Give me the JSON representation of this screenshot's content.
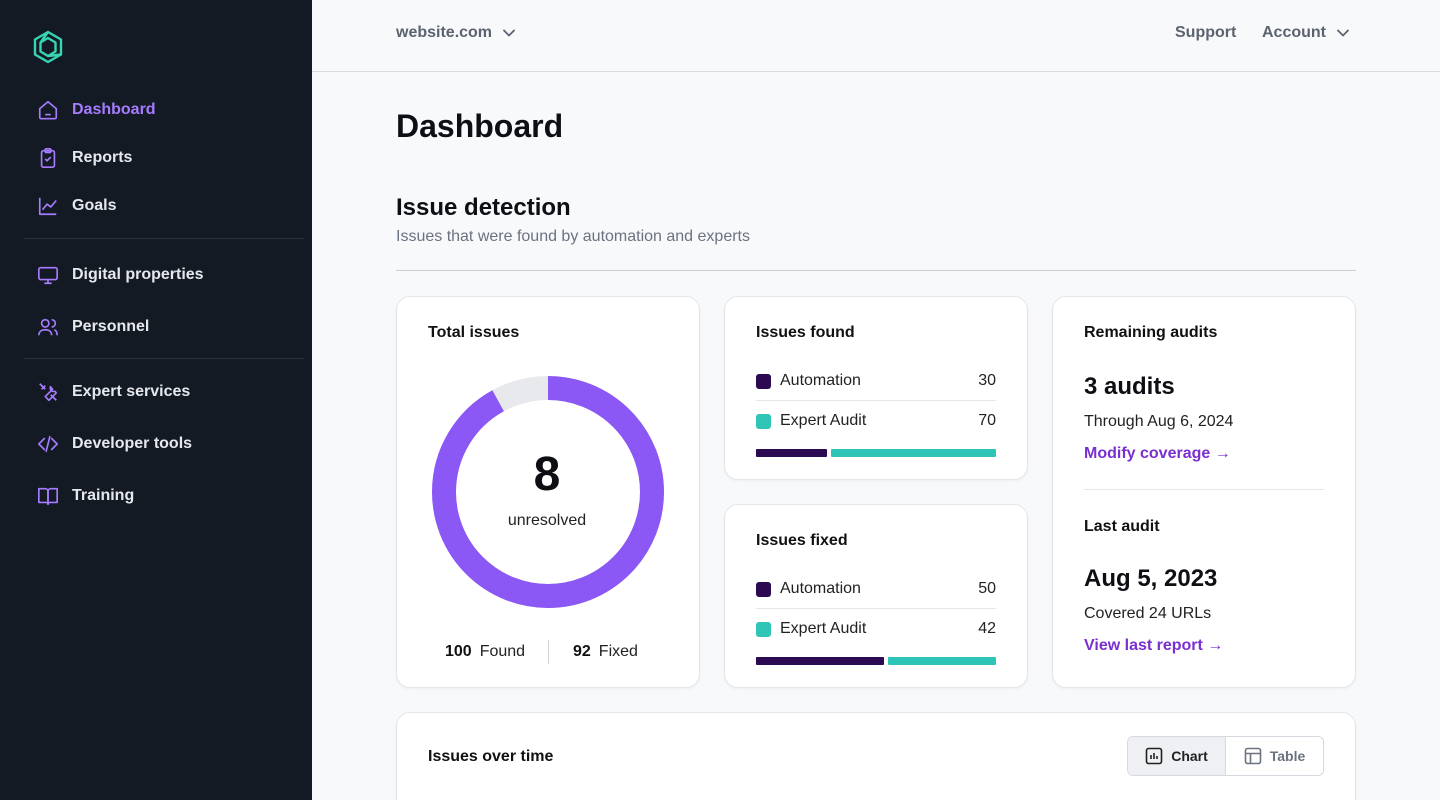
{
  "sidebar": {
    "items": [
      {
        "label": "Dashboard",
        "icon": "home-icon"
      },
      {
        "label": "Reports",
        "icon": "clipboard-check-icon"
      },
      {
        "label": "Goals",
        "icon": "trend-chart-icon"
      },
      {
        "label": "Digital properties",
        "icon": "monitor-icon"
      },
      {
        "label": "Personnel",
        "icon": "users-icon"
      },
      {
        "label": "Expert services",
        "icon": "tools-icon"
      },
      {
        "label": "Developer tools",
        "icon": "code-icon"
      },
      {
        "label": "Training",
        "icon": "book-icon"
      }
    ],
    "active_index": 0
  },
  "topbar": {
    "site": "website.com",
    "support": "Support",
    "account": "Account"
  },
  "main": {
    "title": "Dashboard",
    "section_title": "Issue detection",
    "section_subtitle": "Issues that were found by automation and experts"
  },
  "total_issues": {
    "title": "Total issues",
    "unresolved": "8",
    "unresolved_label": "unresolved",
    "found": "100",
    "found_label": "Found",
    "fixed": "92",
    "fixed_label": "Fixed",
    "fixed_fraction": 0.92
  },
  "issues_found": {
    "title": "Issues found",
    "rows": [
      {
        "label": "Automation",
        "value": "30"
      },
      {
        "label": "Expert Audit",
        "value": "70"
      }
    ],
    "fractions": [
      0.3,
      0.7
    ]
  },
  "issues_fixed": {
    "title": "Issues fixed",
    "rows": [
      {
        "label": "Automation",
        "value": "50"
      },
      {
        "label": "Expert Audit",
        "value": "42"
      }
    ],
    "fractions": [
      0.543,
      0.457
    ]
  },
  "audits": {
    "remaining_title": "Remaining audits",
    "remaining_value": "3 audits",
    "remaining_through": "Through Aug 6, 2024",
    "modify_link": "Modify coverage →",
    "last_title": "Last audit",
    "last_date": "Aug 5, 2023",
    "last_covered": "Covered 24 URLs",
    "last_link": "View last report →"
  },
  "issues_over_time": {
    "title": "Issues over time",
    "chart_label": "Chart",
    "table_label": "Table",
    "selected": "Chart"
  },
  "colors": {
    "accent": "#8b57f5",
    "automation": "#2b0a52",
    "expert_audit": "#2ec4b6",
    "donut_track": "#e8e9ec",
    "link": "#7a2fd1",
    "sidebar_bg": "#131a24"
  }
}
